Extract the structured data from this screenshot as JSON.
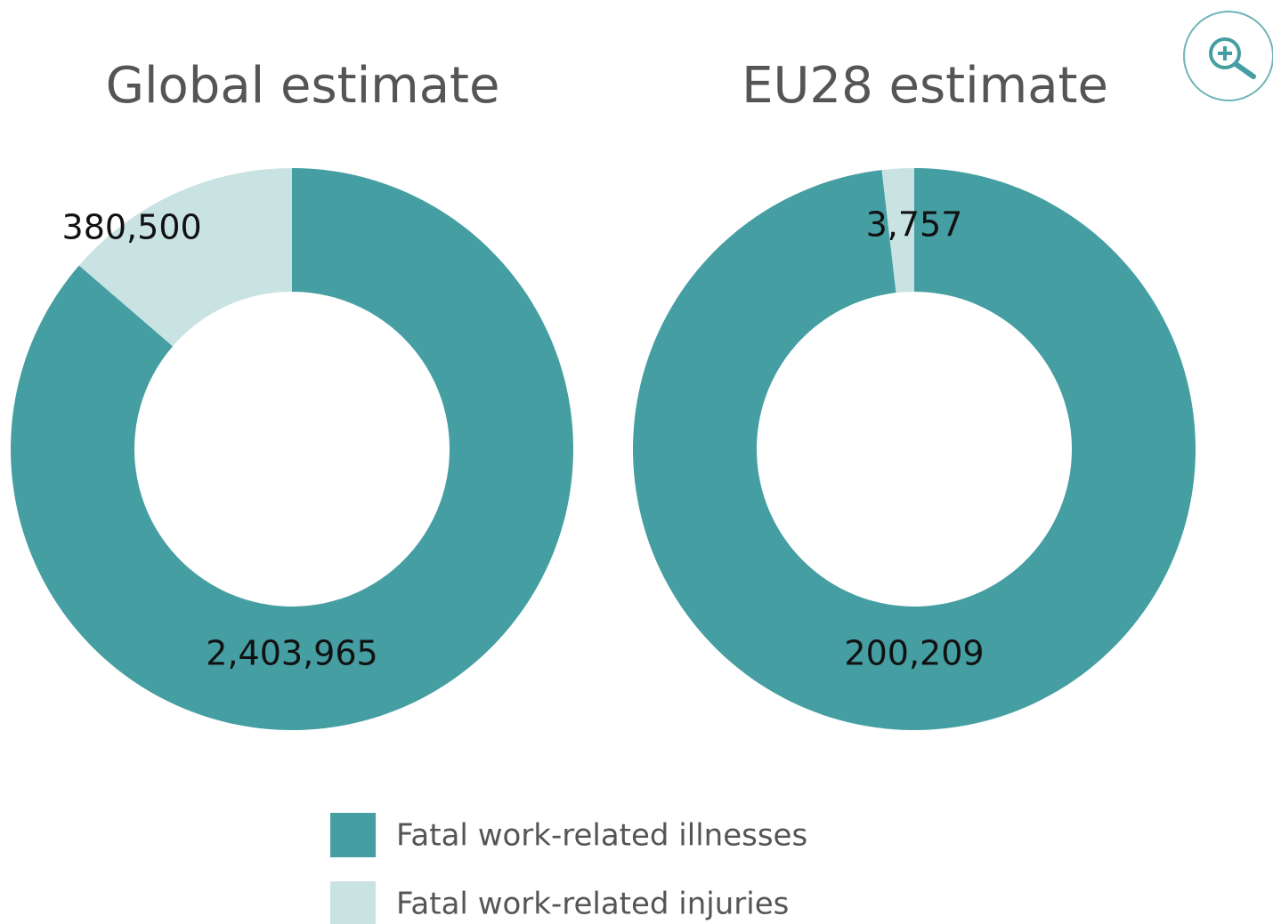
{
  "chart_data": [
    {
      "type": "pie",
      "donut": true,
      "title": "Global estimate",
      "categories": [
        "Fatal work-related illnesses",
        "Fatal work-related injuries"
      ],
      "values": [
        2403965,
        380500
      ],
      "value_labels": [
        "2,403,965",
        "380,500"
      ],
      "colors": [
        "#459ea2",
        "#c9e3e3"
      ]
    },
    {
      "type": "pie",
      "donut": true,
      "title": "EU28 estimate",
      "categories": [
        "Fatal work-related illnesses",
        "Fatal work-related injuries"
      ],
      "values": [
        200209,
        3757
      ],
      "value_labels": [
        "200,209",
        "3,757"
      ],
      "colors": [
        "#459ea2",
        "#c9e3e3"
      ]
    }
  ]
}
